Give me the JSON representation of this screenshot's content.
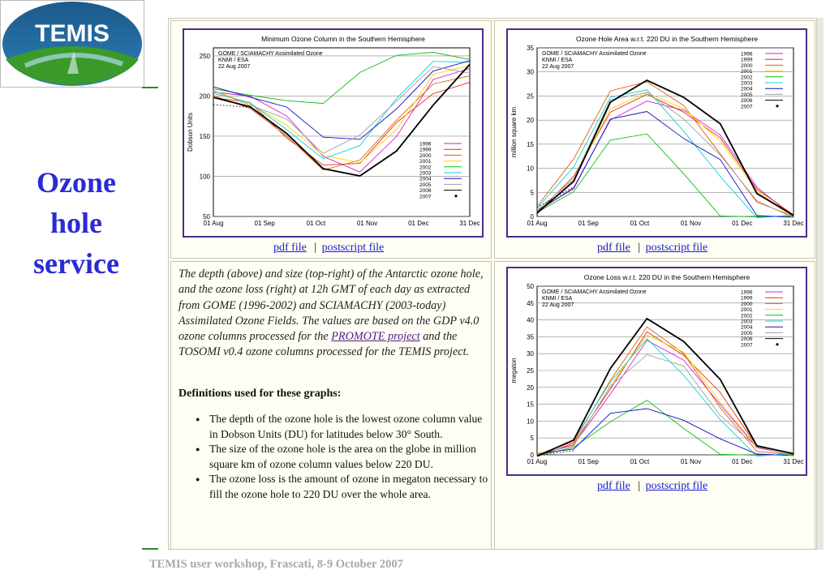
{
  "logo": {
    "text": "TEMIS"
  },
  "side_title": {
    "line1": "Ozone",
    "line2": "hole",
    "line3": "service"
  },
  "footer": "TEMIS user workshop, Frascati, 8-9 October 2007",
  "links": {
    "pdf": "pdf file",
    "separator": "|",
    "ps": "postscript file"
  },
  "description": {
    "before_link": "The depth (above) and size (top-right) of the Antarctic ozone hole, and the ozone loss (right) at 12h GMT of each day as extracted from GOME (1996-2002) and SCIAMACHY (2003-today) Assimilated Ozone Fields. The values are based on the GDP v4.0 ozone columns processed for the ",
    "link": "PROMOTE project",
    "after_link": " and the TOSOMI v0.4 ozone columns processed for the TEMIS project."
  },
  "definitions": {
    "title": "Definitions used for these graphs:",
    "items": [
      "The depth of the ozone hole is the lowest ozone column value in Dobson Units (DU) for latitudes below 30° South.",
      "The size of the ozone hole is the area on the globe in million square km of ozone column values below 220 DU.",
      "The ozone loss is the amount of ozone in megaton necessary to fill the ozone hole to 220 DU over the whole area."
    ]
  },
  "colors": {
    "accent": "#2b2bd6",
    "frame": "#4b2d8a",
    "link": "#1a1ad0",
    "1996": "#d020d0",
    "1999": "#e03010",
    "2000": "#e06010",
    "2001": "#ffd000",
    "2002": "#10c010",
    "2003": "#10d0d0",
    "2004": "#1010c0",
    "2005": "#a0a0a0",
    "2006": "#000000",
    "2007": "#000000"
  },
  "chart_data": [
    {
      "type": "line",
      "title": "Minimum Ozone Column in the Southern Hemisphere",
      "subtitle": [
        "GOME / SCIAMACHY Assimilated Ozone",
        "KNMI / ESA",
        "22 Aug 2007"
      ],
      "ylabel": "Dobson Units",
      "xlabel": "",
      "x_ticks": [
        "01 Aug",
        "01 Sep",
        "01 Oct",
        "01 Nov",
        "01 Dec",
        "31 Dec"
      ],
      "ylim": [
        50,
        260
      ],
      "y_ticks": [
        50,
        100,
        150,
        200,
        250
      ],
      "legend": "bottom-right",
      "grid": true,
      "series": [
        {
          "name": "1996",
          "color": "#d020d0",
          "values": [
            205,
            200,
            175,
            125,
            105,
            150,
            220,
            235
          ]
        },
        {
          "name": "1999",
          "color": "#e03010",
          "values": [
            200,
            190,
            150,
            112,
            118,
            165,
            205,
            215
          ]
        },
        {
          "name": "2000",
          "color": "#e06010",
          "values": [
            200,
            185,
            150,
            108,
            120,
            170,
            215,
            225
          ]
        },
        {
          "name": "2001",
          "color": "#ffd000",
          "values": [
            205,
            192,
            162,
            128,
            115,
            160,
            225,
            240
          ]
        },
        {
          "name": "2002",
          "color": "#10c010",
          "values": [
            210,
            200,
            195,
            190,
            230,
            250,
            255,
            245
          ]
        },
        {
          "name": "2003",
          "color": "#10d0d0",
          "values": [
            205,
            190,
            160,
            120,
            140,
            195,
            245,
            240
          ]
        },
        {
          "name": "2004",
          "color": "#1010c0",
          "values": [
            210,
            200,
            185,
            150,
            145,
            185,
            230,
            245
          ]
        },
        {
          "name": "2005",
          "color": "#a0a0a0",
          "values": [
            205,
            190,
            170,
            130,
            150,
            195,
            235,
            230
          ]
        },
        {
          "name": "2006",
          "color": "#000000",
          "values": [
            200,
            185,
            155,
            108,
            102,
            130,
            190,
            238
          ]
        },
        {
          "name": "2007",
          "color": "#000000",
          "values": [
            190,
            185
          ]
        }
      ]
    },
    {
      "type": "line",
      "title": "Ozone Hole Area w.r.t. 220 DU in the Southern Hemisphere",
      "subtitle": [
        "GOME / SCIAMACHY Assimilated Ozone",
        "KNMI / ESA",
        "22 Aug 2007"
      ],
      "ylabel": "million square km",
      "xlabel": "",
      "x_ticks": [
        "01 Aug",
        "01 Sep",
        "01 Oct",
        "01 Nov",
        "01 Dec",
        "31 Dec"
      ],
      "ylim": [
        0,
        35
      ],
      "y_ticks": [
        0,
        5,
        10,
        15,
        20,
        25,
        30,
        35
      ],
      "legend": "top-right",
      "grid": true,
      "series": [
        {
          "name": "1996",
          "color": "#d020d0",
          "values": [
            1,
            6,
            20,
            24,
            22,
            17,
            6,
            0
          ]
        },
        {
          "name": "1999",
          "color": "#e03010",
          "values": [
            1,
            8,
            22,
            25,
            22,
            16,
            6,
            0
          ]
        },
        {
          "name": "2000",
          "color": "#e06010",
          "values": [
            2,
            12,
            26,
            28,
            23,
            13,
            3,
            0
          ]
        },
        {
          "name": "2001",
          "color": "#ffd000",
          "values": [
            1,
            8,
            22,
            26,
            22,
            16,
            5,
            0
          ]
        },
        {
          "name": "2002",
          "color": "#10c010",
          "values": [
            1,
            5,
            16,
            17,
            9,
            0,
            0,
            0
          ]
        },
        {
          "name": "2003",
          "color": "#10d0d0",
          "values": [
            2,
            10,
            25,
            26,
            18,
            8,
            0,
            0
          ]
        },
        {
          "name": "2004",
          "color": "#1010c0",
          "values": [
            1,
            6,
            20,
            22,
            16,
            12,
            0,
            0
          ]
        },
        {
          "name": "2005",
          "color": "#a0a0a0",
          "values": [
            1,
            8,
            24,
            26,
            20,
            13,
            3,
            0
          ]
        },
        {
          "name": "2006",
          "color": "#000000",
          "values": [
            1,
            7,
            24,
            28,
            25,
            19,
            5,
            0
          ]
        },
        {
          "name": "2007",
          "color": "#000000",
          "values": [
            2,
            6
          ]
        }
      ]
    },
    {
      "type": "line",
      "title": "Ozone Loss w.r.t. 220 DU in the Southern Hemisphere",
      "subtitle": [
        "GOME / SCIAMACHY Assimilated Ozone",
        "KNMI / ESA",
        "22 Aug 2007"
      ],
      "ylabel": "megaton",
      "xlabel": "",
      "x_ticks": [
        "01 Aug",
        "01 Sep",
        "01 Oct",
        "01 Nov",
        "01 Dec",
        "31 Dec"
      ],
      "ylim": [
        0,
        50
      ],
      "y_ticks": [
        0,
        5,
        10,
        15,
        20,
        25,
        30,
        35,
        40,
        45,
        50
      ],
      "legend": "top-right",
      "grid": true,
      "series": [
        {
          "name": "1996",
          "color": "#d020d0",
          "values": [
            0,
            3,
            18,
            34,
            28,
            15,
            2,
            0
          ]
        },
        {
          "name": "1999",
          "color": "#e03010",
          "values": [
            0,
            3,
            20,
            36,
            30,
            18,
            3,
            0
          ]
        },
        {
          "name": "2000",
          "color": "#e06010",
          "values": [
            0,
            4,
            22,
            38,
            30,
            14,
            1,
            0
          ]
        },
        {
          "name": "2001",
          "color": "#ffd000",
          "values": [
            0,
            3,
            20,
            36,
            30,
            16,
            2,
            0
          ]
        },
        {
          "name": "2002",
          "color": "#10c010",
          "values": [
            0,
            2,
            10,
            16,
            8,
            0,
            0,
            0
          ]
        },
        {
          "name": "2003",
          "color": "#10d0d0",
          "values": [
            0,
            4,
            22,
            34,
            24,
            10,
            0,
            0
          ]
        },
        {
          "name": "2004",
          "color": "#1010c0",
          "values": [
            0,
            2,
            12,
            14,
            10,
            5,
            0,
            0
          ]
        },
        {
          "name": "2005",
          "color": "#a0a0a0",
          "values": [
            0,
            3,
            20,
            30,
            26,
            12,
            2,
            0
          ]
        },
        {
          "name": "2006",
          "color": "#000000",
          "values": [
            0,
            4,
            26,
            40,
            34,
            22,
            3,
            0
          ]
        },
        {
          "name": "2007",
          "color": "#000000",
          "values": [
            0,
            1
          ]
        }
      ]
    }
  ]
}
